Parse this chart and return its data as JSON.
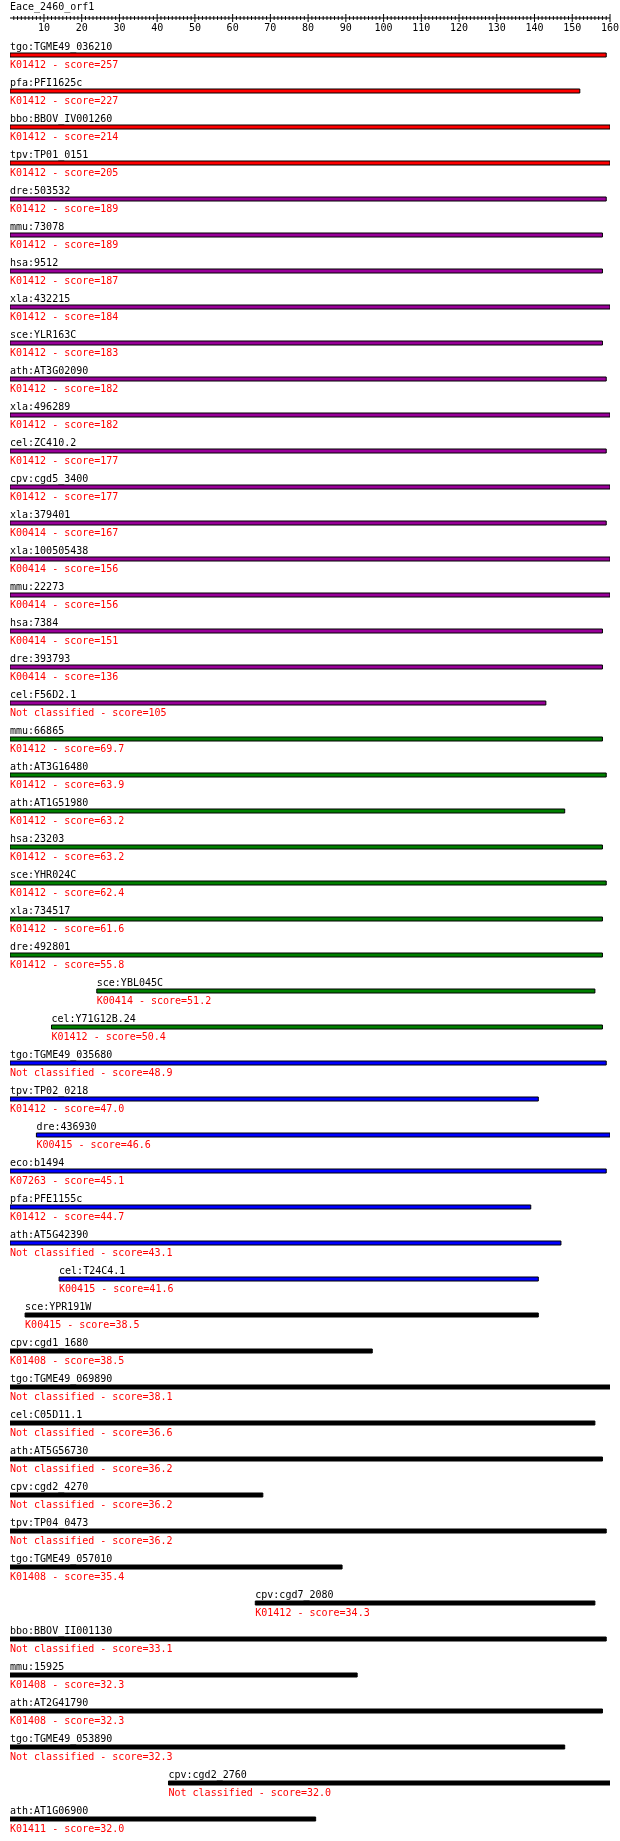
{
  "chart_data": {
    "type": "bar",
    "orientation": "horizontal",
    "title": "Eace_2460_orf1",
    "categories": [
      "tgo:TGME49_036210",
      "pfa:PFI1625c",
      "bbo:BBOV_IV001260",
      "tpv:TP01_0151",
      "dre:503532",
      "mmu:73078",
      "hsa:9512",
      "xla:432215",
      "sce:YLR163C",
      "ath:AT3G02090",
      "xla:496289",
      "cel:ZC410.2",
      "cpv:cgd5_3400",
      "xla:379401",
      "xla:100505438",
      "mmu:22273",
      "hsa:7384",
      "dre:393793",
      "cel:F56D2.1",
      "mmu:66865",
      "ath:AT3G16480",
      "ath:AT1G51980",
      "hsa:23203",
      "sce:YHR024C",
      "xla:734517",
      "dre:492801",
      "sce:YBL045C",
      "cel:Y71G12B.24",
      "tgo:TGME49_035680",
      "tpv:TP02_0218",
      "dre:436930",
      "eco:b1494",
      "pfa:PFE1155c",
      "ath:AT5G42390",
      "cel:T24C4.1",
      "sce:YPR191W",
      "cpv:cgd1_1680",
      "tgo:TGME49_069890",
      "cel:C05D11.1",
      "ath:AT5G56730",
      "cpv:cgd2_4270",
      "tpv:TP04_0473",
      "tgo:TGME49_057010",
      "cpv:cgd7_2080",
      "bbo:BBOV_II001130",
      "mmu:15925",
      "ath:AT2G41790",
      "tgo:TGME49_053890",
      "cpv:cgd2_2760",
      "ath:AT1G06900"
    ],
    "base": [
      1,
      1,
      1,
      1,
      1,
      1,
      1,
      1,
      1,
      1,
      1,
      1,
      1,
      1,
      1,
      1,
      1,
      1,
      1,
      1,
      1,
      1,
      1,
      1,
      1,
      1,
      24,
      12,
      1,
      1,
      8,
      1,
      1,
      1,
      14,
      5,
      1,
      1,
      1,
      1,
      1,
      1,
      1,
      66,
      1,
      1,
      1,
      1,
      43,
      1
    ],
    "values": [
      158,
      151,
      159,
      159,
      158,
      157,
      157,
      159,
      157,
      158,
      159,
      158,
      159,
      158,
      159,
      159,
      157,
      157,
      142,
      157,
      158,
      147,
      157,
      158,
      157,
      157,
      132,
      146,
      158,
      140,
      152,
      158,
      138,
      146,
      127,
      136,
      96,
      159,
      155,
      157,
      67,
      158,
      88,
      90,
      158,
      92,
      157,
      147,
      117,
      81
    ],
    "colors": [
      "#ff0000",
      "#ff0000",
      "#ff0000",
      "#ff0000",
      "#990099",
      "#990099",
      "#990099",
      "#990099",
      "#990099",
      "#990099",
      "#990099",
      "#990099",
      "#990099",
      "#990099",
      "#990099",
      "#990099",
      "#990099",
      "#990099",
      "#990099",
      "#008000",
      "#008000",
      "#008000",
      "#008000",
      "#008000",
      "#008000",
      "#008000",
      "#008000",
      "#008000",
      "#0000ff",
      "#0000ff",
      "#0000ff",
      "#0000ff",
      "#0000ff",
      "#0000ff",
      "#0000ff",
      "#000000",
      "#000000",
      "#000000",
      "#000000",
      "#000000",
      "#000000",
      "#000000",
      "#000000",
      "#000000",
      "#000000",
      "#000000",
      "#000000",
      "#000000",
      "#000000",
      "#000000"
    ],
    "xlim": [
      1,
      160
    ],
    "xticks": [
      {
        "value": 2,
        "label": null
      },
      {
        "value": 3,
        "label": null
      },
      {
        "value": 4,
        "label": null
      },
      {
        "value": 5,
        "label": null
      },
      {
        "value": 6,
        "label": null
      },
      {
        "value": 7,
        "label": null
      },
      {
        "value": 8,
        "label": null
      },
      {
        "value": 9,
        "label": null
      },
      10,
      {
        "value": 11,
        "label": null
      },
      {
        "value": 12,
        "label": null
      },
      {
        "value": 13,
        "label": null
      },
      {
        "value": 14,
        "label": null
      },
      {
        "value": 15,
        "label": null
      },
      {
        "value": 16,
        "label": null
      },
      {
        "value": 17,
        "label": null
      },
      {
        "value": 18,
        "label": null
      },
      {
        "value": 19,
        "label": null
      },
      20,
      {
        "value": 21,
        "label": null
      },
      {
        "value": 22,
        "label": null
      },
      {
        "value": 23,
        "label": null
      },
      {
        "value": 24,
        "label": null
      },
      {
        "value": 25,
        "label": null
      },
      {
        "value": 26,
        "label": null
      },
      {
        "value": 27,
        "label": null
      },
      {
        "value": 28,
        "label": null
      },
      {
        "value": 29,
        "label": null
      },
      30,
      {
        "value": 31,
        "label": null
      },
      {
        "value": 32,
        "label": null
      },
      {
        "value": 33,
        "label": null
      },
      {
        "value": 34,
        "label": null
      },
      {
        "value": 35,
        "label": null
      },
      {
        "value": 36,
        "label": null
      },
      {
        "value": 37,
        "label": null
      },
      {
        "value": 38,
        "label": null
      },
      {
        "value": 39,
        "label": null
      },
      40,
      {
        "value": 41,
        "label": null
      },
      {
        "value": 42,
        "label": null
      },
      {
        "value": 43,
        "label": null
      },
      {
        "value": 44,
        "label": null
      },
      {
        "value": 45,
        "label": null
      },
      {
        "value": 46,
        "label": null
      },
      {
        "value": 47,
        "label": null
      },
      {
        "value": 48,
        "label": null
      },
      {
        "value": 49,
        "label": null
      },
      50,
      {
        "value": 51,
        "label": null
      },
      {
        "value": 52,
        "label": null
      },
      {
        "value": 53,
        "label": null
      },
      {
        "value": 54,
        "label": null
      },
      {
        "value": 55,
        "label": null
      },
      {
        "value": 56,
        "label": null
      },
      {
        "value": 57,
        "label": null
      },
      {
        "value": 58,
        "label": null
      },
      {
        "value": 59,
        "label": null
      },
      60,
      {
        "value": 61,
        "label": null
      },
      {
        "value": 62,
        "label": null
      },
      {
        "value": 63,
        "label": null
      },
      {
        "value": 64,
        "label": null
      },
      {
        "value": 65,
        "label": null
      },
      {
        "value": 66,
        "label": null
      },
      {
        "value": 67,
        "label": null
      },
      {
        "value": 68,
        "label": null
      },
      {
        "value": 69,
        "label": null
      },
      70,
      {
        "value": 71,
        "label": null
      },
      {
        "value": 72,
        "label": null
      },
      {
        "value": 73,
        "label": null
      },
      {
        "value": 74,
        "label": null
      },
      {
        "value": 75,
        "label": null
      },
      {
        "value": 76,
        "label": null
      },
      {
        "value": 77,
        "label": null
      },
      {
        "value": 78,
        "label": null
      },
      {
        "value": 79,
        "label": null
      },
      80,
      {
        "value": 81,
        "label": null
      },
      {
        "value": 82,
        "label": null
      },
      {
        "value": 83,
        "label": null
      },
      {
        "value": 84,
        "label": null
      },
      {
        "value": 85,
        "label": null
      },
      {
        "value": 86,
        "label": null
      },
      {
        "value": 87,
        "label": null
      },
      {
        "value": 88,
        "label": null
      },
      {
        "value": 89,
        "label": null
      },
      90,
      {
        "value": 91,
        "label": null
      },
      {
        "value": 92,
        "label": null
      },
      {
        "value": 93,
        "label": null
      },
      {
        "value": 94,
        "label": null
      },
      {
        "value": 95,
        "label": null
      },
      {
        "value": 96,
        "label": null
      },
      {
        "value": 97,
        "label": null
      },
      {
        "value": 98,
        "label": null
      },
      {
        "value": 99,
        "label": null
      },
      100,
      {
        "value": 101,
        "label": null
      },
      {
        "value": 102,
        "label": null
      },
      {
        "value": 103,
        "label": null
      },
      {
        "value": 104,
        "label": null
      },
      {
        "value": 105,
        "label": null
      },
      {
        "value": 106,
        "label": null
      },
      {
        "value": 107,
        "label": null
      },
      {
        "value": 108,
        "label": null
      },
      {
        "value": 109,
        "label": null
      },
      110,
      {
        "value": 111,
        "label": null
      },
      {
        "value": 112,
        "label": null
      },
      {
        "value": 113,
        "label": null
      },
      {
        "value": 114,
        "label": null
      },
      {
        "value": 115,
        "label": null
      },
      {
        "value": 116,
        "label": null
      },
      {
        "value": 117,
        "label": null
      },
      {
        "value": 118,
        "label": null
      },
      {
        "value": 119,
        "label": null
      },
      120,
      {
        "value": 121,
        "label": null
      },
      {
        "value": 122,
        "label": null
      },
      {
        "value": 123,
        "label": null
      },
      {
        "value": 124,
        "label": null
      },
      {
        "value": 125,
        "label": null
      },
      {
        "value": 126,
        "label": null
      },
      {
        "value": 127,
        "label": null
      },
      {
        "value": 128,
        "label": null
      },
      {
        "value": 129,
        "label": null
      },
      130,
      {
        "value": 131,
        "label": null
      },
      {
        "value": 132,
        "label": null
      },
      {
        "value": 133,
        "label": null
      },
      {
        "value": 134,
        "label": null
      },
      {
        "value": 135,
        "label": null
      },
      {
        "value": 136,
        "label": null
      },
      {
        "value": 137,
        "label": null
      },
      {
        "value": 138,
        "label": null
      },
      {
        "value": 139,
        "label": null
      },
      140,
      {
        "value": 141,
        "label": null
      },
      {
        "value": 142,
        "label": null
      },
      {
        "value": 143,
        "label": null
      },
      {
        "value": 144,
        "label": null
      },
      {
        "value": 145,
        "label": null
      },
      {
        "value": 146,
        "label": null
      },
      {
        "value": 147,
        "label": null
      },
      {
        "value": 148,
        "label": null
      },
      {
        "value": 149,
        "label": null
      },
      150,
      {
        "value": 151,
        "label": null
      },
      {
        "value": 152,
        "label": null
      },
      {
        "value": 153,
        "label": null
      },
      {
        "value": 154,
        "label": null
      },
      {
        "value": 155,
        "label": null
      },
      {
        "value": 156,
        "label": null
      },
      {
        "value": 157,
        "label": null
      },
      {
        "value": 158,
        "label": null
      },
      {
        "value": 159,
        "label": null
      },
      160
    ],
    "annotations": [
      "K01412 - score=257",
      "K01412 - score=227",
      "K01412 - score=214",
      "K01412 - score=205",
      "K01412 - score=189",
      "K01412 - score=189",
      "K01412 - score=187",
      "K01412 - score=184",
      "K01412 - score=183",
      "K01412 - score=182",
      "K01412 - score=182",
      "K01412 - score=177",
      "K01412 - score=177",
      "K00414 - score=167",
      "K00414 - score=156",
      "K00414 - score=156",
      "K00414 - score=151",
      "K00414 - score=136",
      "Not classified - score=105",
      "K01412 - score=69.7",
      "K01412 - score=63.9",
      "K01412 - score=63.2",
      "K01412 - score=63.2",
      "K01412 - score=62.4",
      "K01412 - score=61.6",
      "K01412 - score=55.8",
      "K00414 - score=51.2",
      "K01412 - score=50.4",
      "Not classified - score=48.9",
      "K01412 - score=47.0",
      "K00415 - score=46.6",
      "K07263 - score=45.1",
      "K01412 - score=44.7",
      "Not classified - score=43.1",
      "K00415 - score=41.6",
      "K00415 - score=38.5",
      "K01408 - score=38.5",
      "Not classified - score=38.1",
      "Not classified - score=36.6",
      "Not classified - score=36.2",
      "Not classified - score=36.2",
      "Not classified - score=36.2",
      "K01408 - score=35.4",
      "K01412 - score=34.3",
      "Not classified - score=33.1",
      "K01408 - score=32.3",
      "K01408 - score=32.3",
      "Not classified - score=32.3",
      "Not classified - score=32.0",
      "K01411 - score=32.0"
    ]
  }
}
